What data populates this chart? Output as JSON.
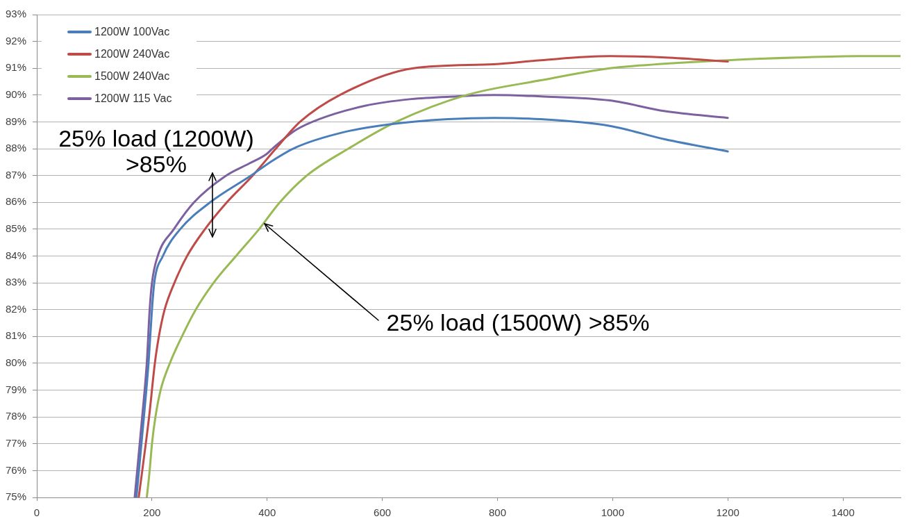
{
  "chart_data": {
    "type": "line",
    "xlim": [
      0,
      1500
    ],
    "xticks": [
      0,
      200,
      400,
      600,
      800,
      1000,
      1200,
      1400
    ],
    "ylim": [
      75,
      93
    ],
    "yticks": [
      {
        "value": 75,
        "label": "75%"
      },
      {
        "value": 76,
        "label": "76%"
      },
      {
        "value": 77,
        "label": "77%"
      },
      {
        "value": 78,
        "label": "78%"
      },
      {
        "value": 79,
        "label": "79%"
      },
      {
        "value": 80,
        "label": "80%"
      },
      {
        "value": 81,
        "label": "81%"
      },
      {
        "value": 82,
        "label": "82%"
      },
      {
        "value": 83,
        "label": "83%"
      },
      {
        "value": 84,
        "label": "84%"
      },
      {
        "value": 85,
        "label": "85%"
      },
      {
        "value": 86,
        "label": "86%"
      },
      {
        "value": 87,
        "label": "87%"
      },
      {
        "value": 88,
        "label": "88%"
      },
      {
        "value": 89,
        "label": "89%"
      },
      {
        "value": 90,
        "label": "90%"
      },
      {
        "value": 91,
        "label": "91%"
      },
      {
        "value": 92,
        "label": "92%"
      },
      {
        "value": 93,
        "label": "93%"
      }
    ],
    "grid": "y",
    "legend": "top left",
    "annotations": [
      {
        "text": "25% load (1200W)\n>85%",
        "x": 305,
        "y": 85.9
      },
      {
        "text": "25% load (1500W) >85%",
        "x": 395,
        "y": 85.2
      }
    ],
    "series": [
      {
        "name": "1200W 100Vac",
        "color": "#4a7ebb",
        "x": [
          173,
          186,
          194,
          200,
          204,
          219,
          249,
          301,
          372,
          409,
          450,
          530,
          610,
          714,
          794,
          875,
          995,
          1091,
          1200
        ],
        "values": [
          75,
          78,
          80,
          82,
          83,
          84,
          85,
          86,
          87,
          87.55,
          88.05,
          88.6,
          88.9,
          89.1,
          89.15,
          89.1,
          88.85,
          88.35,
          87.9
        ]
      },
      {
        "name": "1200W 240Vac",
        "color": "#be4b48",
        "x": [
          177,
          195,
          205,
          212,
          222,
          239,
          261,
          292,
          330,
          375,
          415,
          457,
          526,
          654,
          794,
          875,
          995,
          1091,
          1200
        ],
        "values": [
          75,
          78,
          80,
          81,
          82,
          83,
          84,
          85,
          86,
          87,
          88,
          89,
          90,
          91.0,
          91.15,
          91.3,
          91.45,
          91.4,
          91.25
        ]
      },
      {
        "name": "1500W 240Vac",
        "color": "#98b954",
        "x": [
          191,
          196,
          200,
          206,
          215,
          231,
          252,
          276,
          307,
          346,
          386,
          422,
          469,
          541,
          624,
          746,
          875,
          995,
          1045,
          1200,
          1321,
          1429,
          1500
        ],
        "values": [
          75,
          76,
          77,
          78,
          79,
          80,
          81,
          82,
          83,
          84,
          85,
          86,
          87,
          88,
          89,
          90,
          90.55,
          91.0,
          91.1,
          91.3,
          91.4,
          91.45,
          91.45
        ]
      },
      {
        "name": "1200W 115 Vac",
        "color": "#7d60a0",
        "x": [
          170,
          183,
          191,
          196,
          200,
          210,
          238,
          273,
          329,
          369,
          399,
          409,
          450,
          490,
          570,
          650,
          730,
          794,
          875,
          995,
          1091,
          1200
        ],
        "values": [
          75,
          78,
          80,
          82,
          83,
          84,
          85,
          86,
          87,
          87.45,
          87.8,
          88.0,
          88.7,
          89.1,
          89.6,
          89.85,
          89.95,
          90.0,
          89.95,
          89.8,
          89.4,
          89.15
        ]
      }
    ]
  }
}
